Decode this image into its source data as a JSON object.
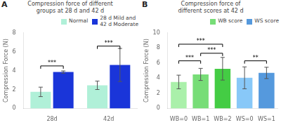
{
  "chart_data": [
    {
      "type": "bar",
      "panel_label": "A",
      "title": "Compression force of different\ngroups at 28 d and 42 d",
      "y_label": "Compression Force (N)",
      "categories": [
        "28d",
        "42d"
      ],
      "series": [
        {
          "name": "Normal",
          "color": "#b0f0d8",
          "values": [
            1.75,
            2.45
          ],
          "errors": [
            0.5,
            0.45
          ]
        },
        {
          "name": "28 d Mild and\n42 d Moderate",
          "color": "#1a35d9",
          "values": [
            3.85,
            4.6
          ],
          "errors": [
            0.12,
            1.75
          ]
        }
      ],
      "ylim": [
        0,
        8
      ],
      "yticks": [
        0,
        2,
        4,
        6,
        8
      ],
      "grid": false,
      "legend": "upper right",
      "brackets": [
        {
          "category": "28d",
          "from": "Normal",
          "to": "28 d Mild and\n42 d Moderate",
          "y": 4.5,
          "label": "***"
        },
        {
          "category": "42d",
          "from": "Normal",
          "to": "28 d Mild and\n42 d Moderate",
          "y": 6.6,
          "label": "***"
        }
      ]
    },
    {
      "type": "bar",
      "panel_label": "B",
      "title": "Compression force of\ndifferent scores at 42 d",
      "y_label": "Compression Force (N)",
      "categories": [
        "WB=0",
        "WB=1",
        "WB=2",
        "WS=0",
        "WS=1"
      ],
      "values": [
        3.5,
        4.5,
        5.25,
        4.05,
        4.7
      ],
      "errors": [
        0.9,
        0.8,
        1.5,
        1.45,
        0.75
      ],
      "colors": [
        "#aaf0aa",
        "#77dd77",
        "#44cc44",
        "#88c8f8",
        "#5599dd"
      ],
      "legend_entries": [
        {
          "name": "WB score",
          "color": "#77dd77"
        },
        {
          "name": "WS score",
          "color": "#5599dd"
        }
      ],
      "ylim": [
        0,
        10
      ],
      "yticks": [
        0,
        2,
        4,
        6,
        8,
        10
      ],
      "grid": false,
      "legend": "upper right",
      "brackets": [
        {
          "from": "WB=0",
          "to": "WB=1",
          "y": 6.3,
          "label": "***"
        },
        {
          "from": "WB=1",
          "to": "WB=2",
          "y": 7.3,
          "label": "***"
        },
        {
          "from": "WB=0",
          "to": "WB=2",
          "y": 8.5,
          "label": "***"
        },
        {
          "from": "WS=0",
          "to": "WS=1",
          "y": 6.3,
          "label": "**"
        }
      ]
    }
  ]
}
